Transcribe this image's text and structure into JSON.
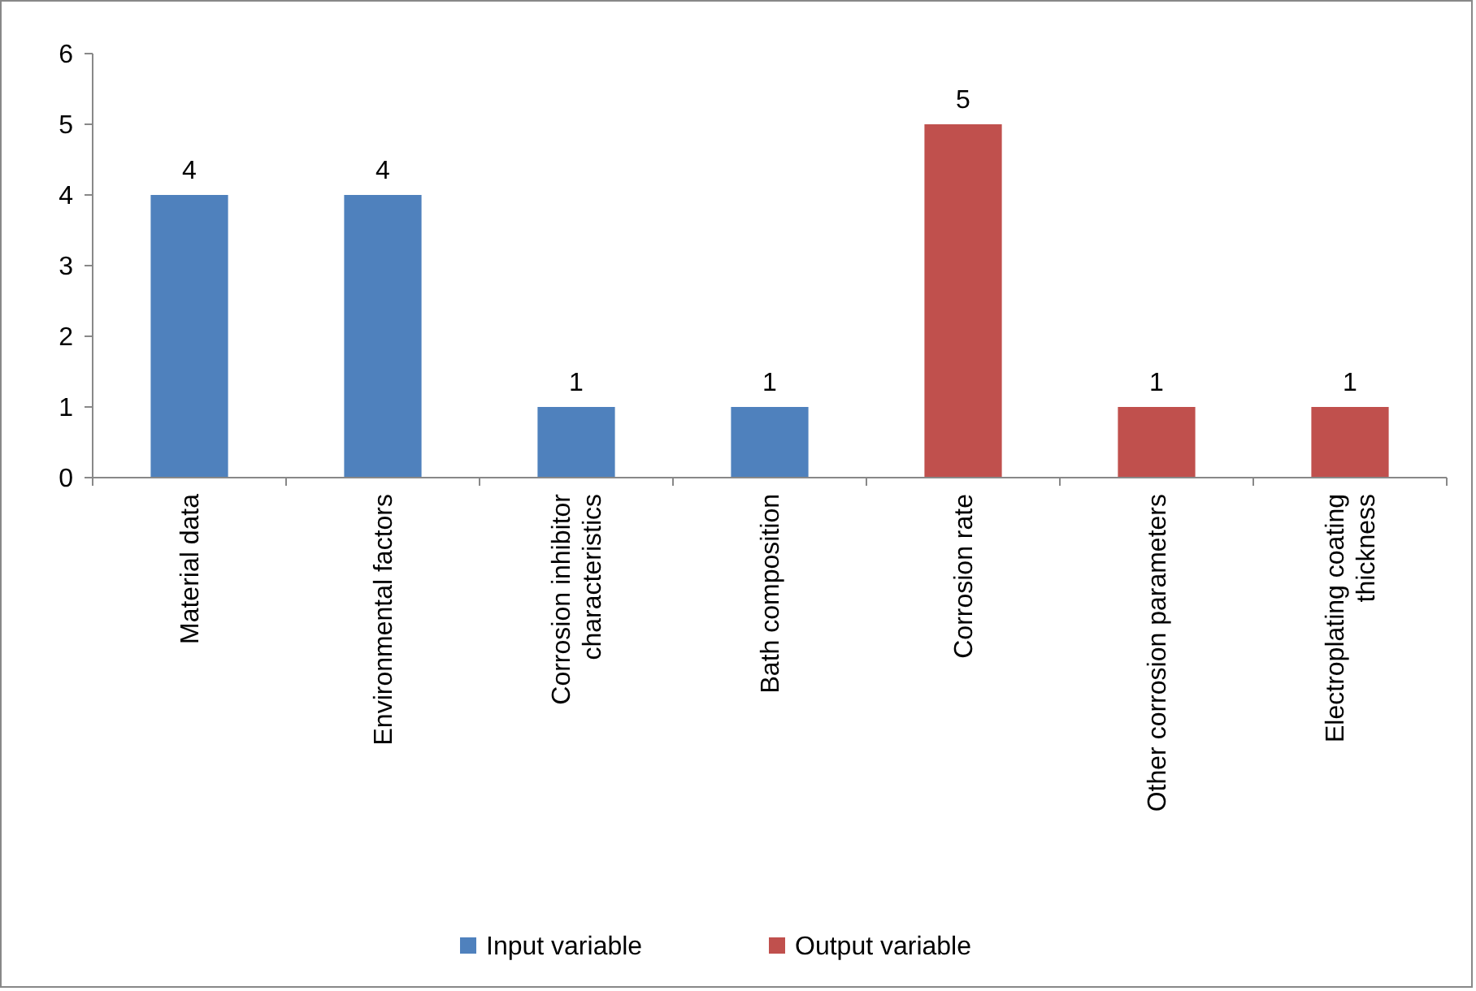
{
  "chart_data": {
    "type": "bar",
    "categories": [
      "Material data",
      "Environmental factors",
      "Corrosion inhibitor characteristics",
      "Bath composition",
      "Corrosion rate",
      "Other corrosion parameters",
      "Electroplating coating thickness"
    ],
    "series": [
      {
        "name": "Input variable",
        "color": "#4f81bd",
        "values": [
          4,
          4,
          1,
          1,
          null,
          null,
          null
        ]
      },
      {
        "name": "Output variable",
        "color": "#c0504d",
        "values": [
          null,
          null,
          null,
          null,
          5,
          1,
          1
        ]
      }
    ],
    "ylim": [
      0,
      6
    ],
    "yticks": [
      0,
      1,
      2,
      3,
      4,
      5,
      6
    ],
    "data_labels": true,
    "legend": "bottom"
  }
}
